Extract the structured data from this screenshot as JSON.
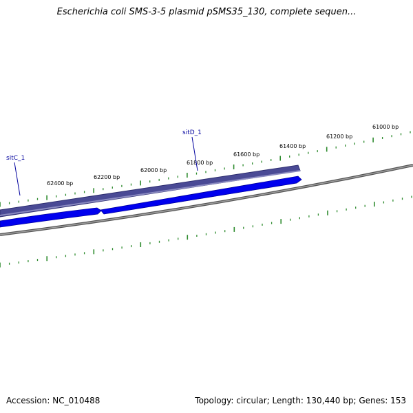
{
  "title": "Escherichia coli SMS-3-5 plasmid pSMS35_130, complete sequen...",
  "ruler_labels": [
    "62400 bp",
    "62200 bp",
    "62000 bp",
    "61800 bp",
    "61600 bp",
    "61400 bp",
    "61200 bp",
    "61000 bp"
  ],
  "genes": [
    "sitC_1",
    "sitD_1"
  ],
  "footer": {
    "accession": "Accession: NC_010488",
    "summary": "Topology: circular; Length: 130,440 bp; Genes: 153"
  },
  "colors": {
    "tick": "#2e8b2e",
    "backbone": "#808080",
    "cds": "#0000ee",
    "gene": "#4a4a95",
    "gene_label": "#00009e"
  }
}
